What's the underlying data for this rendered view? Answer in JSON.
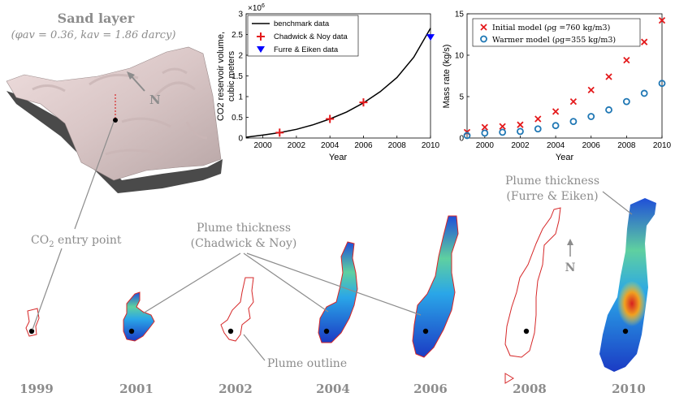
{
  "figure": {
    "sand_layer": {
      "title": "Sand layer",
      "params": "(φav = 0.36, kav = 1.86 darcy)",
      "north": "N"
    },
    "annotations": {
      "co2_entry": "CO2 entry point",
      "thickness_cn_1": "Plume thickness",
      "thickness_cn_2": "(Chadwick & Noy)",
      "thickness_fe_1": "Plume thickness",
      "thickness_fe_2": "(Furre & Eiken)",
      "plume_outline": "Plume outline",
      "north": "N"
    },
    "years": [
      "1999",
      "2001",
      "2002",
      "2004",
      "2006",
      "2008",
      "2010"
    ],
    "colors": {
      "outline": "#d62728",
      "benchmark": "#000000",
      "cross": "#e41a1c",
      "triangle": "#0000ff",
      "circle": "#1f77b4",
      "grey_text": "#8c8c8c"
    }
  },
  "chart_data": [
    {
      "type": "line",
      "title": "",
      "xlabel": "Year",
      "ylabel": "CO2 reservoir volume, cubic meters",
      "ylabel_line1": "CO2 reservoir volume,",
      "ylabel_line2": "cubic meters",
      "exponent": "×10",
      "exponent_power": "6",
      "xlim": [
        1999,
        2010
      ],
      "ylim": [
        0,
        3
      ],
      "xticks": [
        "2000",
        "2002",
        "2004",
        "2006",
        "2008",
        "2010"
      ],
      "yticks": [
        "0",
        "0.5",
        "1",
        "1.5",
        "2",
        "2.5",
        "3"
      ],
      "series": [
        {
          "name": "benchmark data",
          "x": [
            1999,
            2000,
            2001,
            2002,
            2003,
            2004,
            2005,
            2006,
            2007,
            2008,
            2009,
            2010
          ],
          "y": [
            0.02,
            0.07,
            0.13,
            0.21,
            0.32,
            0.46,
            0.63,
            0.85,
            1.12,
            1.46,
            1.95,
            2.65
          ]
        },
        {
          "name": "Chadwick & Noy data",
          "x": [
            2001,
            2004,
            2006
          ],
          "y": [
            0.13,
            0.46,
            0.86
          ]
        },
        {
          "name": "Furre & Eiken data",
          "x": [
            2010
          ],
          "y": [
            2.43
          ]
        }
      ]
    },
    {
      "type": "scatter",
      "title": "",
      "xlabel": "Year",
      "ylabel": "Mass rate (kg/s)",
      "xlim": [
        1999,
        2010
      ],
      "ylim": [
        0,
        15
      ],
      "xticks": [
        "2000",
        "2002",
        "2004",
        "2006",
        "2008",
        "2010"
      ],
      "yticks": [
        "0",
        "5",
        "10",
        "15"
      ],
      "series": [
        {
          "name": "Initial model (ρg =760 kg/m3)",
          "x": [
            1999,
            2000,
            2001,
            2002,
            2003,
            2004,
            2005,
            2006,
            2007,
            2008,
            2009,
            2010
          ],
          "y": [
            0.7,
            1.3,
            1.4,
            1.6,
            2.3,
            3.2,
            4.4,
            5.8,
            7.4,
            9.4,
            11.6,
            14.2
          ]
        },
        {
          "name": "Warmer model (ρg=355 kg/m3)",
          "x": [
            1999,
            2000,
            2001,
            2002,
            2003,
            2004,
            2005,
            2006,
            2007,
            2008,
            2009,
            2010
          ],
          "y": [
            0.3,
            0.6,
            0.7,
            0.8,
            1.1,
            1.5,
            2.0,
            2.6,
            3.4,
            4.4,
            5.4,
            6.6
          ]
        }
      ]
    }
  ]
}
